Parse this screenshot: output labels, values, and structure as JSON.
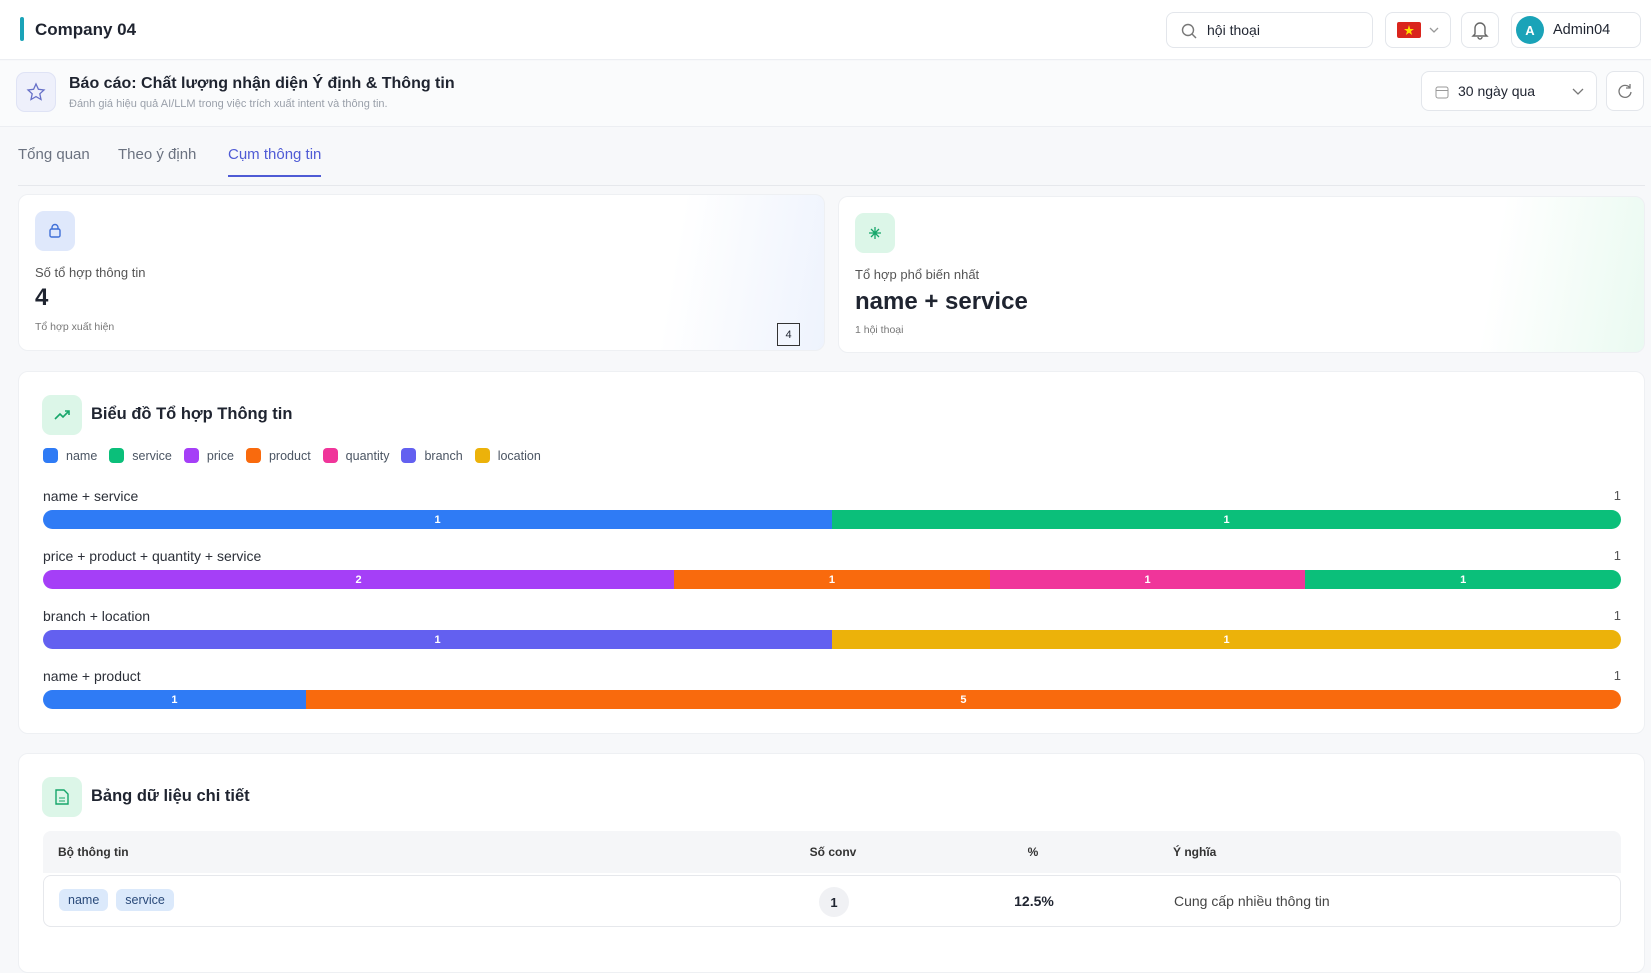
{
  "header": {
    "company": "Company 04",
    "search": "hội thoại",
    "user_initial": "A",
    "user_name": "Admin04"
  },
  "report": {
    "title": "Báo cáo: Chất lượng nhận diện Ý định & Thông tin",
    "subtitle": "Đánh giá hiệu quả AI/LLM trong việc trích xuất intent và thông tin.",
    "period": "30 ngày qua"
  },
  "tabs": [
    "Tổng quan",
    "Theo ý định",
    "Cụm thông tin"
  ],
  "active_tab": 2,
  "cards": [
    {
      "label": "Số tổ hợp thông tin",
      "value": 4,
      "note": "Tổ hợp xuất hiện",
      "badge": 4
    },
    {
      "label": "Tổ hợp phổ biến nhất",
      "value": "name + service",
      "note": "1 hội thoại"
    }
  ],
  "chart": {
    "title": "Biểu đồ Tổ hợp Thông tin",
    "legend": [
      {
        "name": "name",
        "color": "#2f7bf5"
      },
      {
        "name": "service",
        "color": "#0bbf7a"
      },
      {
        "name": "price",
        "color": "#a53ff7"
      },
      {
        "name": "product",
        "color": "#f96a0d"
      },
      {
        "name": "quantity",
        "color": "#f0359a"
      },
      {
        "name": "branch",
        "color": "#6360f0"
      },
      {
        "name": "location",
        "color": "#ecb20a"
      }
    ],
    "rows": [
      {
        "label": "name + service",
        "count": 1,
        "segments": [
          {
            "value": 1,
            "color": "#2f7bf5"
          },
          {
            "value": 1,
            "color": "#0bbf7a"
          }
        ]
      },
      {
        "label": "price + product + quantity + service",
        "count": 1,
        "segments": [
          {
            "value": 2,
            "color": "#a53ff7"
          },
          {
            "value": 1,
            "color": "#f96a0d"
          },
          {
            "value": 1,
            "color": "#f0359a"
          },
          {
            "value": 1,
            "color": "#0bbf7a"
          }
        ]
      },
      {
        "label": "branch + location",
        "count": 1,
        "segments": [
          {
            "value": 1,
            "color": "#6360f0"
          },
          {
            "value": 1,
            "color": "#ecb20a"
          }
        ]
      },
      {
        "label": "name + product",
        "count": 1,
        "segments": [
          {
            "value": 1,
            "color": "#2f7bf5"
          },
          {
            "value": 5,
            "color": "#f96a0d"
          }
        ]
      }
    ]
  },
  "table": {
    "title": "Bảng dữ liệu chi tiết",
    "columns": [
      "Bộ thông tin",
      "Số conv",
      "%",
      "Ý nghĩa"
    ],
    "rows": [
      {
        "tags": [
          "name",
          "service"
        ],
        "conv": 1,
        "percent": "12.5%",
        "meaning": "Cung cấp nhiều thông tin"
      }
    ]
  }
}
